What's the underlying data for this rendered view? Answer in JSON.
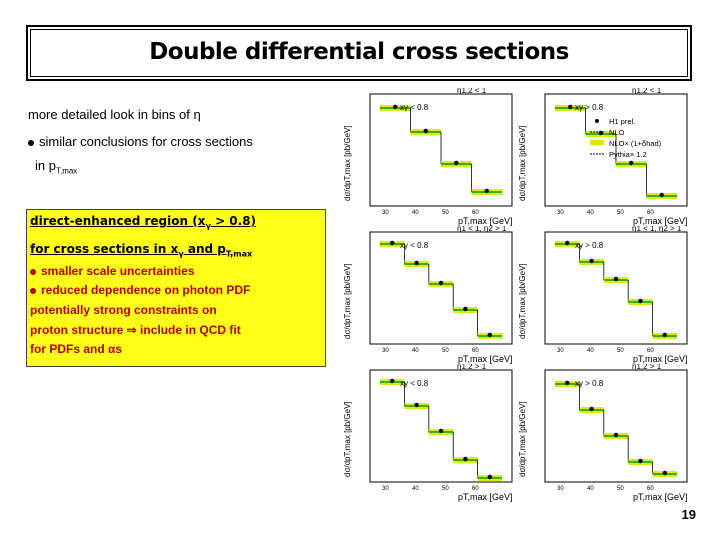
{
  "title": "Double differential cross sections",
  "intro": {
    "line1": "more detailed look in bins of η",
    "line2": "similar conclusions for cross sections",
    "line3_prefix": "in p",
    "line3_sub": "T,max"
  },
  "box": {
    "head1_prefix": "direct-enhanced region (x",
    "head1_sub": "γ",
    "head1_suffix": " > 0.8)",
    "head2_prefix": "for cross sections in x",
    "head2_sub1": "γ",
    "head2_mid": " and p",
    "head2_sub2": "T,max",
    "bullet1": "smaller scale uncertainties",
    "bullet2": "reduced dependence on photon PDF",
    "line3": "potentially strong constraints on",
    "line4": "proton structure ⇒ include in QCD fit",
    "line5": "for PDFs and αs"
  },
  "plot_labels": {
    "ylabel": "dσ/dpT,max [pb/GeV]",
    "xlabel": "pT,max [GeV]",
    "xticks": [
      "30",
      "40",
      "50",
      "60"
    ],
    "legend": [
      "H1 prel.",
      "NLO",
      "NLO× (1+δhad)",
      "Pythia× 1.2"
    ]
  },
  "panels": [
    {
      "eta": "η1,2 < 1",
      "xg": "xγ < 0.8",
      "legend": false
    },
    {
      "eta": "η1,2 < 1",
      "xg": "xγ > 0.8",
      "legend": true
    },
    {
      "eta": "η1 < 1, η2 > 1",
      "xg": "xγ < 0.8",
      "legend": false
    },
    {
      "eta": "η1 < 1, η2 > 1",
      "xg": "xγ > 0.8",
      "legend": false
    },
    {
      "eta": "η1,2 > 1",
      "xg": "xγ < 0.8",
      "legend": false
    },
    {
      "eta": "η1,2 > 1",
      "xg": "xγ > 0.8",
      "legend": false
    }
  ],
  "page_number": "19"
}
